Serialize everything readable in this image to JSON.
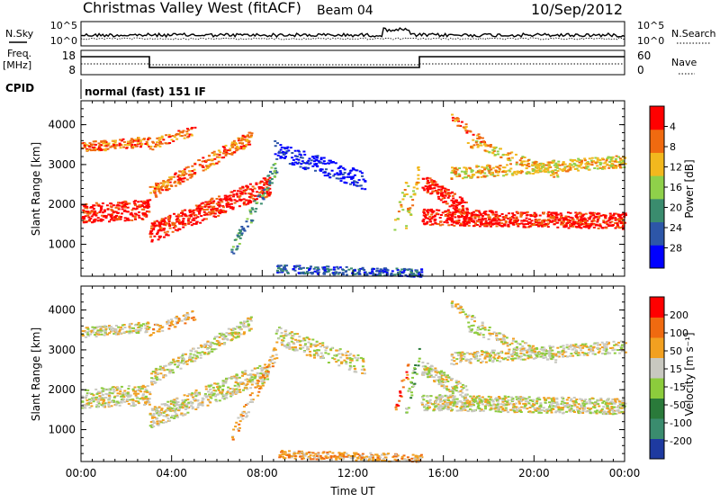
{
  "header": {
    "station": "Christmas Valley West (fitACF)",
    "beam": "Beam 04",
    "date": "10/Sep/2012"
  },
  "noise_panel": {
    "left_label": "N.Sky",
    "left_ticks": [
      "10^5",
      "10^0"
    ],
    "right_ticks": [
      "10^5",
      "10^0"
    ],
    "right_label": "N.Search"
  },
  "freq_panel": {
    "left_label_1": "Freq.",
    "left_label_2": "[MHz]",
    "left_ticks": [
      "18",
      "8"
    ],
    "right_ticks": [
      "60",
      "0"
    ],
    "right_label": "Nave"
  },
  "cpid_panel": {
    "label": "CPID",
    "mode": "normal (fast) 151 IF"
  },
  "chart_data": [
    {
      "type": "heatmap",
      "name": "Power",
      "ylabel": "Slant Range [km]",
      "ylim": [
        200,
        4600
      ],
      "yticks": [
        1000,
        2000,
        3000,
        4000
      ],
      "xlim": [
        0,
        24
      ],
      "colorbar": {
        "label": "Power [dB]",
        "ticks": [
          "4",
          "8",
          "12",
          "16",
          "20",
          "24",
          "28"
        ],
        "colors": [
          "#0000ff",
          "#2d56a8",
          "#3a8c6e",
          "#8fd04a",
          "#f2b81e",
          "#f06a10",
          "#ff0000"
        ]
      }
    },
    {
      "type": "heatmap",
      "name": "Velocity",
      "ylabel": "Slant Range [km]",
      "ylim": [
        200,
        4600
      ],
      "yticks": [
        1000,
        2000,
        3000,
        4000
      ],
      "xlim": [
        0,
        24
      ],
      "xlabel": "Time UT",
      "xticks": [
        "00:00",
        "04:00",
        "08:00",
        "12:00",
        "16:00",
        "20:00",
        "00:00"
      ],
      "colorbar": {
        "label": "Velocity [m s⁻¹]",
        "ticks": [
          "200",
          "100",
          "50",
          "15",
          "-15",
          "-50",
          "-100",
          "-200"
        ],
        "colors": [
          "#1e3aa0",
          "#3a8c6e",
          "#2a7a3a",
          "#8ccc3c",
          "#c8c8c0",
          "#f2a020",
          "#f06a10",
          "#ff0000"
        ]
      }
    }
  ]
}
